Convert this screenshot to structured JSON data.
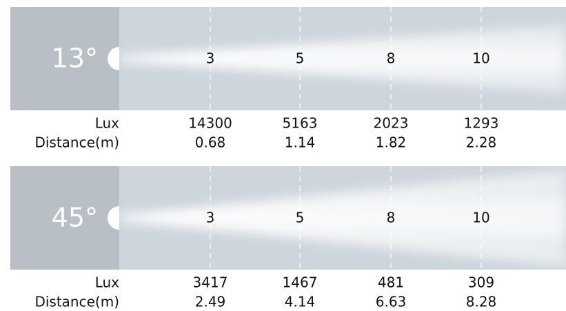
{
  "panels": [
    {
      "angle": "13°",
      "markers": [
        3,
        5,
        8,
        10
      ],
      "rows": [
        {
          "label": "Lux",
          "values": [
            14300,
            5163,
            2023,
            1293
          ]
        },
        {
          "label": "Distance(m)",
          "values": [
            0.68,
            1.14,
            1.82,
            2.28
          ]
        }
      ]
    },
    {
      "angle": "45°",
      "markers": [
        3,
        5,
        8,
        10
      ],
      "rows": [
        {
          "label": "Lux",
          "values": [
            3417,
            1467,
            481,
            309
          ]
        },
        {
          "label": "Distance(m)",
          "values": [
            2.49,
            4.14,
            6.63,
            8.28
          ]
        }
      ]
    }
  ]
}
